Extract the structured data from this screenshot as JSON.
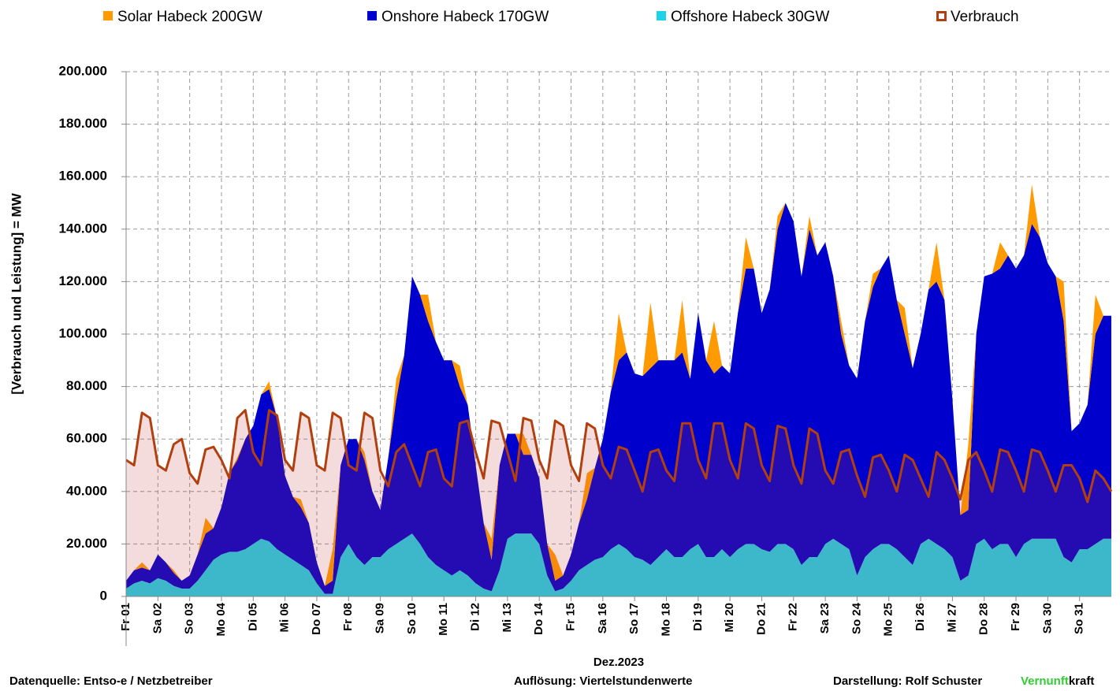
{
  "chart_data": {
    "type": "area",
    "y_label": "[Verbrauch und Leistung] = MW",
    "x_label": "Dez.2023",
    "xlim": [
      0,
      31
    ],
    "ylim": [
      0,
      200000
    ],
    "yticks": [
      0,
      {
        "value": 20000,
        "label": "20.000"
      },
      {
        "value": 40000,
        "label": "40.000"
      },
      {
        "value": 60000,
        "label": "60.000"
      },
      {
        "value": 80000,
        "label": "80.000"
      },
      {
        "value": 100000,
        "label": "100.000"
      },
      {
        "value": 120000,
        "label": "120.000"
      },
      {
        "value": 140000,
        "label": "140.000"
      },
      {
        "value": 160000,
        "label": "160.000"
      },
      {
        "value": 180000,
        "label": "180.000"
      },
      {
        "value": 200000,
        "label": "200.000"
      }
    ],
    "xticks": [
      {
        "value": 0,
        "label": "Fr 01"
      },
      {
        "value": 1,
        "label": "Sa 02"
      },
      {
        "value": 2,
        "label": "So 03"
      },
      {
        "value": 3,
        "label": "Mo 04"
      },
      {
        "value": 4,
        "label": "Di 05"
      },
      {
        "value": 5,
        "label": "Mi 06"
      },
      {
        "value": 6,
        "label": "Do 07"
      },
      {
        "value": 7,
        "label": "Fr 08"
      },
      {
        "value": 8,
        "label": "Sa 09"
      },
      {
        "value": 9,
        "label": "So 10"
      },
      {
        "value": 10,
        "label": "Mo 11"
      },
      {
        "value": 11,
        "label": "Di 12"
      },
      {
        "value": 12,
        "label": "Mi 13"
      },
      {
        "value": 13,
        "label": "Do 14"
      },
      {
        "value": 14,
        "label": "Fr 15"
      },
      {
        "value": 15,
        "label": "Sa 16"
      },
      {
        "value": 16,
        "label": "So 17"
      },
      {
        "value": 17,
        "label": "Mo 18"
      },
      {
        "value": 18,
        "label": "Di 19"
      },
      {
        "value": 19,
        "label": "Mi 20"
      },
      {
        "value": 20,
        "label": "Do 21"
      },
      {
        "value": 21,
        "label": "Fr 22"
      },
      {
        "value": 22,
        "label": "Sa 23"
      },
      {
        "value": 23,
        "label": "So 24"
      },
      {
        "value": 24,
        "label": "Mo 25"
      },
      {
        "value": 25,
        "label": "Di 26"
      },
      {
        "value": 26,
        "label": "Mi 27"
      },
      {
        "value": 27,
        "label": "Do 28"
      },
      {
        "value": 28,
        "label": "Fr 29"
      },
      {
        "value": 29,
        "label": "Sa 30"
      },
      {
        "value": 30,
        "label": "So 31"
      }
    ],
    "grid": true,
    "x": [
      0,
      0.25,
      0.5,
      0.75,
      1,
      1.25,
      1.5,
      1.75,
      2,
      2.25,
      2.5,
      2.75,
      3,
      3.25,
      3.5,
      3.75,
      4,
      4.25,
      4.5,
      4.75,
      5,
      5.25,
      5.5,
      5.75,
      6,
      6.25,
      6.5,
      6.75,
      7,
      7.25,
      7.5,
      7.75,
      8,
      8.25,
      8.5,
      8.75,
      9,
      9.25,
      9.5,
      9.75,
      10,
      10.25,
      10.5,
      10.75,
      11,
      11.25,
      11.5,
      11.75,
      12,
      12.25,
      12.5,
      12.75,
      13,
      13.25,
      13.5,
      13.75,
      14,
      14.25,
      14.5,
      14.75,
      15,
      15.25,
      15.5,
      15.75,
      16,
      16.25,
      16.5,
      16.75,
      17,
      17.25,
      17.5,
      17.75,
      18,
      18.25,
      18.5,
      18.75,
      19,
      19.25,
      19.5,
      19.75,
      20,
      20.25,
      20.5,
      20.75,
      21,
      21.25,
      21.5,
      21.75,
      22,
      22.25,
      22.5,
      22.75,
      23,
      23.25,
      23.5,
      23.75,
      24,
      24.25,
      24.5,
      24.75,
      25,
      25.25,
      25.5,
      25.75,
      26,
      26.25,
      26.5,
      26.75,
      27,
      27.25,
      27.5,
      27.75,
      28,
      28.25,
      28.5,
      28.75,
      29,
      29.25,
      29.5,
      29.75,
      30,
      30.25,
      30.5,
      30.75,
      31
    ],
    "series": [
      {
        "name": "Solar Habeck 200GW",
        "color": "#ff9b00",
        "values": [
          0,
          0,
          2000,
          0,
          0,
          0,
          1000,
          0,
          0,
          0,
          6000,
          0,
          0,
          0,
          1000,
          0,
          0,
          0,
          3000,
          0,
          0,
          0,
          3000,
          0,
          0,
          0,
          12000,
          0,
          0,
          0,
          3000,
          0,
          0,
          0,
          8000,
          0,
          0,
          0,
          10000,
          0,
          0,
          0,
          8000,
          0,
          0,
          0,
          8000,
          0,
          0,
          0,
          8000,
          0,
          0,
          0,
          10000,
          0,
          0,
          0,
          10000,
          0,
          0,
          0,
          18000,
          0,
          0,
          0,
          25000,
          0,
          0,
          0,
          20000,
          0,
          0,
          0,
          20000,
          0,
          0,
          0,
          12000,
          0,
          0,
          0,
          5000,
          0,
          0,
          0,
          5000,
          0,
          0,
          0,
          5000,
          0,
          0,
          0,
          5000,
          0,
          0,
          0,
          10000,
          0,
          0,
          0,
          15000,
          0,
          0,
          0,
          25000,
          0,
          0,
          0,
          10000,
          0,
          0,
          0,
          15000,
          0,
          0,
          0,
          15000,
          0,
          0,
          0,
          15000,
          0,
          0
        ]
      },
      {
        "name": "Onshore Habeck 170GW",
        "color": "#0000cc",
        "values": [
          3000,
          5000,
          5000,
          5000,
          9000,
          7000,
          5000,
          3000,
          5000,
          10000,
          14000,
          12000,
          18000,
          30000,
          35000,
          42000,
          45000,
          55000,
          58000,
          50000,
          30000,
          24000,
          22000,
          18000,
          8000,
          3000,
          5000,
          35000,
          40000,
          45000,
          40000,
          25000,
          18000,
          35000,
          55000,
          70000,
          98000,
          95000,
          90000,
          85000,
          80000,
          82000,
          70000,
          65000,
          45000,
          25000,
          12000,
          40000,
          40000,
          38000,
          30000,
          30000,
          25000,
          12000,
          4000,
          5000,
          10000,
          18000,
          25000,
          35000,
          45000,
          60000,
          70000,
          75000,
          70000,
          70000,
          75000,
          75000,
          72000,
          75000,
          78000,
          65000,
          88000,
          75000,
          70000,
          70000,
          70000,
          90000,
          105000,
          105000,
          90000,
          100000,
          120000,
          130000,
          125000,
          110000,
          125000,
          115000,
          115000,
          100000,
          80000,
          70000,
          75000,
          90000,
          100000,
          105000,
          110000,
          95000,
          85000,
          75000,
          80000,
          95000,
          100000,
          95000,
          60000,
          25000,
          25000,
          80000,
          100000,
          105000,
          105000,
          110000,
          110000,
          110000,
          120000,
          115000,
          105000,
          100000,
          90000,
          50000,
          48000,
          55000,
          80000,
          85000,
          85000
        ]
      },
      {
        "name": "Offshore Habeck 30GW",
        "color": "#1fd2ea",
        "values": [
          3000,
          5000,
          6000,
          5000,
          7000,
          6000,
          4000,
          3000,
          3000,
          6000,
          10000,
          14000,
          16000,
          17000,
          17000,
          18000,
          20000,
          22000,
          21000,
          18000,
          16000,
          14000,
          12000,
          10000,
          5000,
          1000,
          1000,
          15000,
          20000,
          15000,
          12000,
          15000,
          15000,
          18000,
          20000,
          22000,
          24000,
          20000,
          15000,
          12000,
          10000,
          8000,
          10000,
          8000,
          5000,
          3000,
          2000,
          10000,
          22000,
          24000,
          24000,
          24000,
          20000,
          8000,
          2000,
          3000,
          6000,
          10000,
          12000,
          14000,
          15000,
          18000,
          20000,
          18000,
          15000,
          14000,
          12000,
          15000,
          18000,
          15000,
          15000,
          18000,
          20000,
          15000,
          15000,
          18000,
          15000,
          18000,
          20000,
          20000,
          18000,
          17000,
          20000,
          20000,
          18000,
          12000,
          15000,
          15000,
          20000,
          22000,
          20000,
          18000,
          8000,
          15000,
          18000,
          20000,
          20000,
          18000,
          15000,
          12000,
          20000,
          22000,
          20000,
          18000,
          15000,
          6000,
          8000,
          20000,
          22000,
          18000,
          20000,
          20000,
          15000,
          20000,
          22000,
          22000,
          22000,
          22000,
          15000,
          13000,
          18000,
          18000,
          20000,
          22000,
          22000
        ]
      },
      {
        "name": "Verbrauch",
        "color": "#b2400f",
        "type": "line",
        "values": [
          52000,
          50000,
          70000,
          68000,
          50000,
          48000,
          58000,
          60000,
          47000,
          43000,
          56000,
          57000,
          52000,
          45000,
          68000,
          71000,
          55000,
          50000,
          71000,
          69000,
          52000,
          48000,
          70000,
          68000,
          50000,
          48000,
          70000,
          68000,
          50000,
          48000,
          70000,
          68000,
          48000,
          42000,
          55000,
          58000,
          50000,
          42000,
          55000,
          56000,
          45000,
          42000,
          66000,
          67000,
          55000,
          45000,
          67000,
          66000,
          55000,
          44000,
          68000,
          67000,
          52000,
          45000,
          67000,
          65000,
          50000,
          44000,
          66000,
          64000,
          50000,
          45000,
          57000,
          56000,
          48000,
          40000,
          55000,
          56000,
          48000,
          44000,
          66000,
          66000,
          52000,
          45000,
          66000,
          66000,
          52000,
          45000,
          66000,
          64000,
          50000,
          44000,
          65000,
          64000,
          50000,
          43000,
          64000,
          62000,
          48000,
          43000,
          55000,
          56000,
          46000,
          38000,
          53000,
          54000,
          48000,
          40000,
          54000,
          52000,
          45000,
          38000,
          55000,
          52000,
          45000,
          37000,
          52000,
          55000,
          48000,
          40000,
          56000,
          55000,
          48000,
          40000,
          56000,
          55000,
          48000,
          40000,
          50000,
          50000,
          45000,
          36000,
          48000,
          45000,
          40000
        ]
      }
    ]
  },
  "footer": {
    "source": "Datenquelle: Entso-e  / Netzbetreiber",
    "resolution": "Auflösung: Viertelstundenwerte",
    "author": "Darstellung:  Rolf Schuster",
    "brand": [
      "Vernunft",
      "kraft"
    ]
  }
}
